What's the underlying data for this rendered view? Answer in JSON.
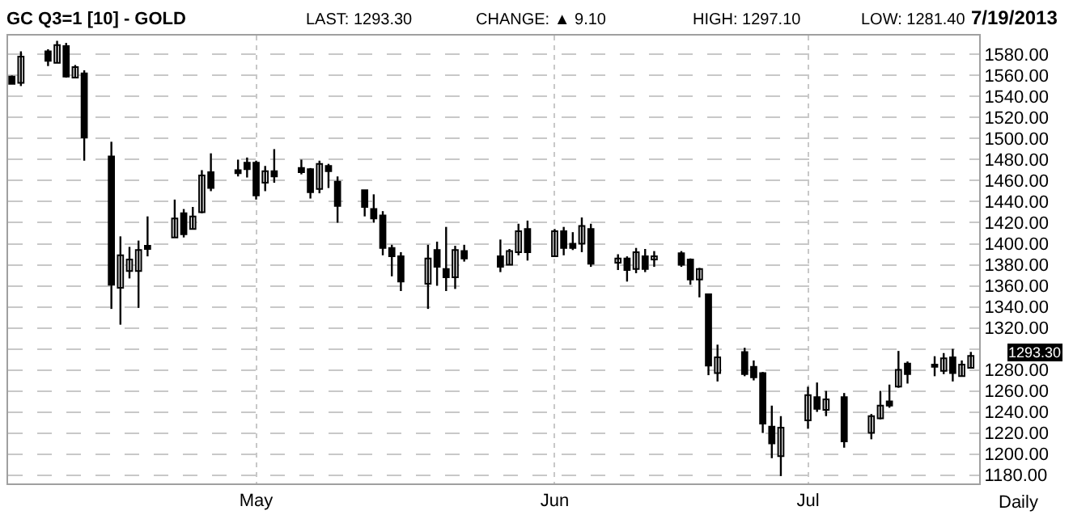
{
  "chart_data": {
    "type": "candlestick",
    "title": "GC Q3=1 [10] - GOLD",
    "annotations": [
      "LAST: 1293.30",
      "CHANGE: ▲ 9.10",
      "HIGH: 1297.10",
      "LOW: 1281.40",
      "7/19/2013",
      {
        "text": "1293.30",
        "x": "2013-07-19",
        "y": 1293.3
      }
    ],
    "xlabel": "Daily",
    "color": "#000000",
    "x": [
      "2013-04-04",
      "2013-04-05",
      "2013-04-08",
      "2013-04-09",
      "2013-04-10",
      "2013-04-11",
      "2013-04-12",
      "2013-04-15",
      "2013-04-16",
      "2013-04-17",
      "2013-04-18",
      "2013-04-19",
      "2013-04-22",
      "2013-04-23",
      "2013-04-24",
      "2013-04-25",
      "2013-04-26",
      "2013-04-29",
      "2013-04-30",
      "2013-05-01",
      "2013-05-02",
      "2013-05-03",
      "2013-05-06",
      "2013-05-07",
      "2013-05-08",
      "2013-05-09",
      "2013-05-10",
      "2013-05-13",
      "2013-05-14",
      "2013-05-15",
      "2013-05-16",
      "2013-05-17",
      "2013-05-20",
      "2013-05-21",
      "2013-05-22",
      "2013-05-23",
      "2013-05-24",
      "2013-05-28",
      "2013-05-29",
      "2013-05-30",
      "2013-05-31",
      "2013-06-03",
      "2013-06-04",
      "2013-06-05",
      "2013-06-06",
      "2013-06-07",
      "2013-06-10",
      "2013-06-11",
      "2013-06-12",
      "2013-06-13",
      "2013-06-14",
      "2013-06-17",
      "2013-06-18",
      "2013-06-19",
      "2013-06-20",
      "2013-06-21",
      "2013-06-24",
      "2013-06-25",
      "2013-06-26",
      "2013-06-27",
      "2013-06-28",
      "2013-07-01",
      "2013-07-02",
      "2013-07-03",
      "2013-07-05",
      "2013-07-08",
      "2013-07-09",
      "2013-07-10",
      "2013-07-11",
      "2013-07-12",
      "2013-07-15",
      "2013-07-16",
      "2013-07-17",
      "2013-07-18",
      "2013-07-19"
    ],
    "ohlc": [
      [
        1559,
        1560,
        1552,
        1552
      ],
      [
        1553,
        1583,
        1550,
        1578
      ],
      [
        1583,
        1585,
        1569,
        1574
      ],
      [
        1572,
        1593,
        1572,
        1589
      ],
      [
        1588,
        1591,
        1558,
        1559
      ],
      [
        1558,
        1570,
        1558,
        1568
      ],
      [
        1562,
        1565,
        1479,
        1501
      ],
      [
        1483,
        1497,
        1338,
        1361
      ],
      [
        1358,
        1407,
        1323,
        1389
      ],
      [
        1374,
        1397,
        1367,
        1385
      ],
      [
        1374,
        1403,
        1339,
        1394
      ],
      [
        1398,
        1426,
        1388,
        1395
      ],
      [
        1406,
        1442,
        1406,
        1424
      ],
      [
        1429,
        1433,
        1406,
        1409
      ],
      [
        1414,
        1435,
        1414,
        1426
      ],
      [
        1430,
        1470,
        1429,
        1465
      ],
      [
        1468,
        1486,
        1450,
        1453
      ],
      [
        1470,
        1480,
        1464,
        1467
      ],
      [
        1477,
        1482,
        1463,
        1471
      ],
      [
        1477,
        1479,
        1442,
        1446
      ],
      [
        1458,
        1474,
        1450,
        1469
      ],
      [
        1469,
        1490,
        1458,
        1464
      ],
      [
        1472,
        1480,
        1466,
        1468
      ],
      [
        1471,
        1472,
        1443,
        1449
      ],
      [
        1452,
        1479,
        1448,
        1476
      ],
      [
        1474,
        1476,
        1453,
        1469
      ],
      [
        1459,
        1464,
        1420,
        1436
      ],
      [
        1451,
        1451,
        1426,
        1435
      ],
      [
        1433,
        1447,
        1420,
        1424
      ],
      [
        1427,
        1431,
        1389,
        1396
      ],
      [
        1396,
        1399,
        1369,
        1388
      ],
      [
        1388,
        1392,
        1355,
        1364
      ],
      [
        1362,
        1399,
        1338,
        1386
      ],
      [
        1394,
        1402,
        1360,
        1378
      ],
      [
        1376,
        1416,
        1355,
        1368
      ],
      [
        1368,
        1398,
        1357,
        1394
      ],
      [
        1393,
        1399,
        1383,
        1386
      ],
      [
        1388,
        1404,
        1373,
        1378
      ],
      [
        1380,
        1395,
        1380,
        1393
      ],
      [
        1392,
        1419,
        1389,
        1412
      ],
      [
        1414,
        1422,
        1384,
        1392
      ],
      [
        1388,
        1414,
        1388,
        1412
      ],
      [
        1412,
        1416,
        1389,
        1396
      ],
      [
        1400,
        1411,
        1394,
        1396
      ],
      [
        1400,
        1425,
        1392,
        1417
      ],
      [
        1414,
        1419,
        1378,
        1381
      ],
      [
        1382,
        1390,
        1375,
        1386
      ],
      [
        1386,
        1388,
        1364,
        1375
      ],
      [
        1376,
        1396,
        1372,
        1392
      ],
      [
        1388,
        1395,
        1373,
        1376
      ],
      [
        1385,
        1393,
        1378,
        1388
      ],
      [
        1391,
        1393,
        1378,
        1380
      ],
      [
        1385,
        1386,
        1361,
        1366
      ],
      [
        1366,
        1377,
        1349,
        1376
      ],
      [
        1352,
        1352,
        1275,
        1284
      ],
      [
        1277,
        1304,
        1269,
        1292
      ],
      [
        1297,
        1301,
        1274,
        1276
      ],
      [
        1283,
        1289,
        1270,
        1273
      ],
      [
        1277,
        1278,
        1220,
        1229
      ],
      [
        1226,
        1246,
        1196,
        1210
      ],
      [
        1198,
        1236,
        1179,
        1225
      ],
      [
        1232,
        1264,
        1224,
        1256
      ],
      [
        1254,
        1268,
        1240,
        1243
      ],
      [
        1242,
        1260,
        1236,
        1252
      ],
      [
        1254,
        1258,
        1206,
        1212
      ],
      [
        1220,
        1238,
        1214,
        1236
      ],
      [
        1234,
        1260,
        1233,
        1246
      ],
      [
        1250,
        1266,
        1244,
        1246
      ],
      [
        1264,
        1298,
        1263,
        1280
      ],
      [
        1286,
        1288,
        1267,
        1276
      ],
      [
        1285,
        1293,
        1274,
        1283
      ],
      [
        1279,
        1296,
        1276,
        1291
      ],
      [
        1292,
        1300,
        1269,
        1277
      ],
      [
        1274,
        1289,
        1274,
        1285
      ],
      [
        1282,
        1297.1,
        1281.4,
        1293.3
      ]
    ],
    "xlim": [
      "2013-04-03T14:00",
      "2013-07-19T22:00"
    ],
    "xticks": [
      {
        "value": "2013-05-01",
        "label": "May"
      },
      {
        "value": "2013-06-03",
        "label": "Jun"
      },
      {
        "value": "2013-07-01",
        "label": "Jul"
      }
    ],
    "ylim": [
      1172,
      1598
    ],
    "yticks": [
      {
        "value": 1180,
        "label": "1180.00"
      },
      {
        "value": 1200,
        "label": "1200.00"
      },
      {
        "value": 1220,
        "label": "1220.00"
      },
      {
        "value": 1240,
        "label": "1240.00"
      },
      {
        "value": 1260,
        "label": "1260.00"
      },
      {
        "value": 1280,
        "label": "1280.00"
      },
      {
        "value": 1300,
        "label": null
      },
      {
        "value": 1320,
        "label": "1320.00"
      },
      {
        "value": 1340,
        "label": "1340.00"
      },
      {
        "value": 1360,
        "label": "1360.00"
      },
      {
        "value": 1380,
        "label": "1380.00"
      },
      {
        "value": 1400,
        "label": "1400.00"
      },
      {
        "value": 1420,
        "label": "1420.00"
      },
      {
        "value": 1440,
        "label": "1440.00"
      },
      {
        "value": 1460,
        "label": "1460.00"
      },
      {
        "value": 1480,
        "label": "1480.00"
      },
      {
        "value": 1500,
        "label": "1500.00"
      },
      {
        "value": 1520,
        "label": "1520.00"
      },
      {
        "value": 1540,
        "label": "1540.00"
      },
      {
        "value": 1560,
        "label": "1560.00"
      },
      {
        "value": 1580,
        "label": "1580.00"
      }
    ],
    "grid": true
  }
}
